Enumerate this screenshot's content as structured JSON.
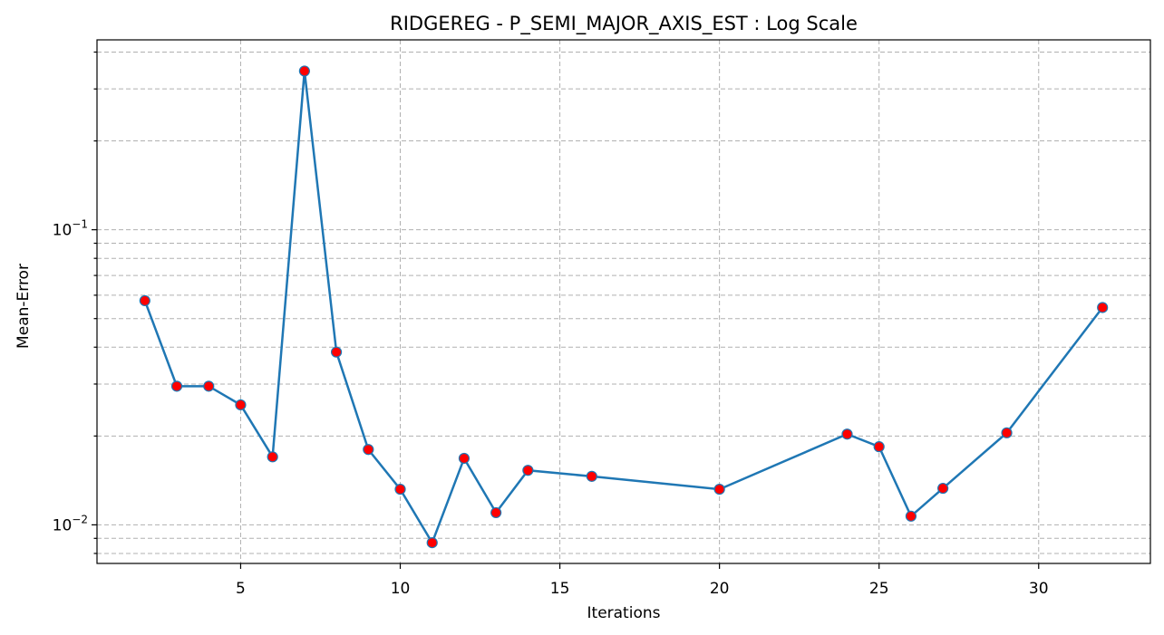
{
  "chart_data": {
    "type": "line",
    "title": "RIDGEREG - P_SEMI_MAJOR_AXIS_EST : Log Scale",
    "xlabel": "Iterations",
    "ylabel": "Mean-Error",
    "yscale": "log",
    "xlim": [
      0.5,
      33.5
    ],
    "ylim": [
      0.0074,
      0.44
    ],
    "xticks": [
      5,
      10,
      15,
      20,
      25,
      30
    ],
    "yticks_major": [
      {
        "value": 0.1,
        "base": "10",
        "exp": "−1"
      },
      {
        "value": 0.01,
        "base": "10",
        "exp": "−2"
      }
    ],
    "grid": true,
    "line_color": "#1f77b4",
    "marker_color": "#ff0000",
    "series": [
      {
        "x": [
          2,
          3,
          4,
          5,
          6,
          7,
          8,
          9,
          10,
          11,
          12,
          13,
          14,
          16,
          20,
          24,
          25,
          26,
          27,
          29,
          32
        ],
        "y": [
          0.0575,
          0.0295,
          0.0295,
          0.0255,
          0.017,
          0.345,
          0.0385,
          0.018,
          0.0132,
          0.0087,
          0.0168,
          0.011,
          0.0153,
          0.0146,
          0.0132,
          0.0203,
          0.0184,
          0.0107,
          0.0133,
          0.0205,
          0.0545
        ]
      }
    ]
  }
}
